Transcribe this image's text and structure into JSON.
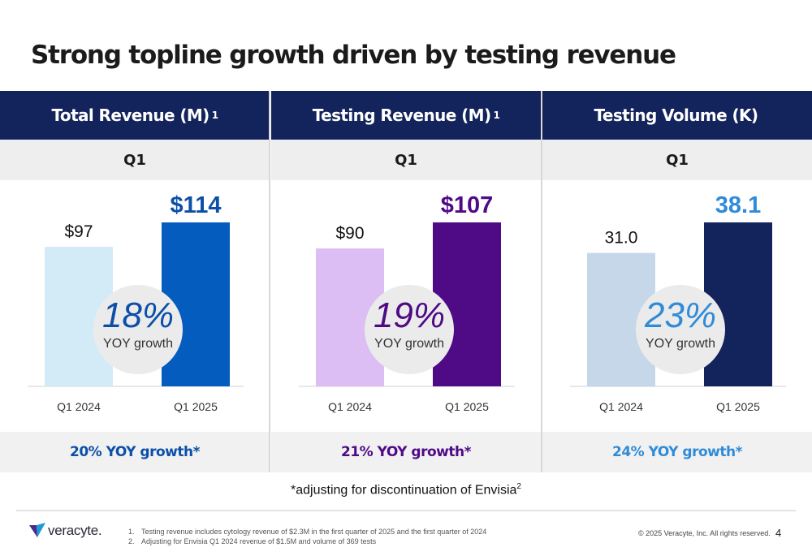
{
  "title": "Strong topline growth driven by testing revenue",
  "colors": {
    "header_bg": "#13235b",
    "total_revenue": [
      "#d3ebf7",
      "#055cbf"
    ],
    "testing_revenue": [
      "#dcbdf4",
      "#4f0a86"
    ],
    "testing_volume": [
      "#c6d7ea",
      "#13235b"
    ],
    "growth_circle": "#ebebeb"
  },
  "panels": [
    {
      "header": "Total Revenue (M)",
      "header_sup": "1",
      "period": "Q1",
      "growth_pct": "18%",
      "growth_label": "YOY growth",
      "adjusted_growth": "20% YOY growth*",
      "value_labels": [
        "$97",
        "$114"
      ],
      "growth_color": "#0b4fa8",
      "footer_color": "#0b4fa8"
    },
    {
      "header": "Testing Revenue (M)",
      "header_sup": "1",
      "period": "Q1",
      "growth_pct": "19%",
      "growth_label": "YOY growth",
      "adjusted_growth": "21% YOY growth*",
      "value_labels": [
        "$90",
        "$107"
      ],
      "growth_color": "#4f0a86",
      "footer_color": "#4f0a86"
    },
    {
      "header": "Testing Volume (K)",
      "header_sup": "",
      "period": "Q1",
      "growth_pct": "23%",
      "growth_label": "YOY growth",
      "adjusted_growth": "24% YOY growth*",
      "value_labels": [
        "31.0",
        "38.1"
      ],
      "growth_color": "#2f8bd8",
      "footer_color": "#2f8bd8"
    }
  ],
  "chart_data": [
    {
      "type": "bar",
      "title": "Total Revenue (M)",
      "categories": [
        "Q1 2024",
        "Q1 2025"
      ],
      "values": [
        97,
        114
      ],
      "value_labels": [
        "$97",
        "$114"
      ],
      "ylim": [
        0,
        114
      ],
      "grid": false
    },
    {
      "type": "bar",
      "title": "Testing Revenue (M)",
      "categories": [
        "Q1 2024",
        "Q1 2025"
      ],
      "values": [
        90,
        107
      ],
      "value_labels": [
        "$90",
        "$107"
      ],
      "ylim": [
        0,
        107
      ],
      "grid": false
    },
    {
      "type": "bar",
      "title": "Testing Volume (K)",
      "categories": [
        "Q1 2024",
        "Q1 2025"
      ],
      "values": [
        31.0,
        38.1
      ],
      "value_labels": [
        "31.0",
        "38.1"
      ],
      "ylim": [
        0,
        38.1
      ],
      "grid": false
    }
  ],
  "footnote_main": "*adjusting for discontinuation of Envisia",
  "footnote_main_sup": "2",
  "logo_text": "veracyte.",
  "notes": [
    {
      "num": "1.",
      "text": "Testing revenue includes cytology revenue of $2.3M in the first quarter of 2025 and the first quarter of 2024"
    },
    {
      "num": "2.",
      "text": "Adjusting for Envisia Q1 2024 revenue of $1.5M and volume of 369 tests"
    }
  ],
  "copyright": "© 2025 Veracyte, Inc. All rights reserved.",
  "page_number": "4"
}
